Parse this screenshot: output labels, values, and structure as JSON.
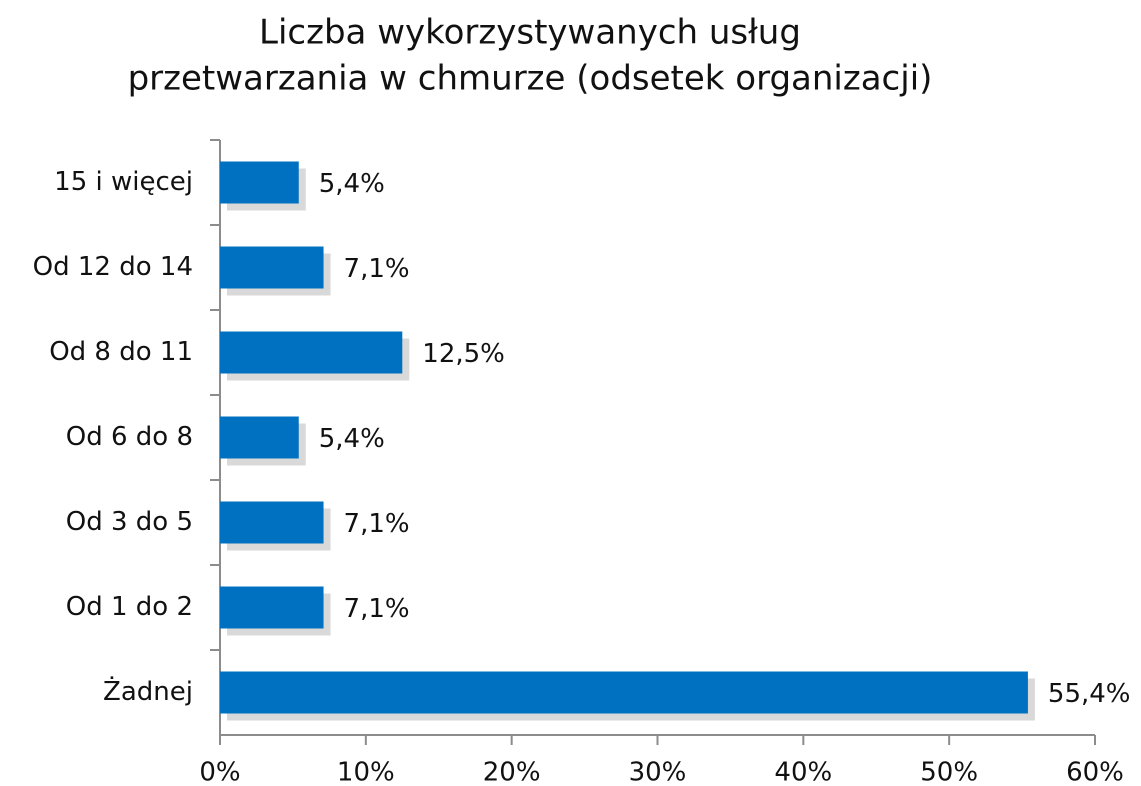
{
  "chart_data": {
    "type": "hbar",
    "title": [
      "Liczba wykorzystywanych usług",
      "przetwarzania w chmurze (odsetek organizacji)"
    ],
    "categories": [
      "15 i więcej",
      "Od 12 do 14",
      "Od 8 do 11",
      "Od 6 do 8",
      "Od 3 do 5",
      "Od 1 do 2",
      "Żadnej"
    ],
    "values": [
      5.4,
      7.1,
      12.5,
      5.4,
      7.1,
      7.1,
      55.4
    ],
    "value_labels": [
      "5,4%",
      "7,1%",
      "12,5%",
      "5,4%",
      "7,1%",
      "7,1%",
      "55,4%"
    ],
    "color": "#0070c0",
    "xlim": [
      0,
      60
    ],
    "xticks": [
      {
        "value": 0,
        "label": "0%"
      },
      {
        "value": 10,
        "label": "10%"
      },
      {
        "value": 20,
        "label": "20%"
      },
      {
        "value": 30,
        "label": "30%"
      },
      {
        "value": 40,
        "label": "40%"
      },
      {
        "value": 50,
        "label": "50%"
      },
      {
        "value": 60,
        "label": "60%"
      }
    ]
  }
}
